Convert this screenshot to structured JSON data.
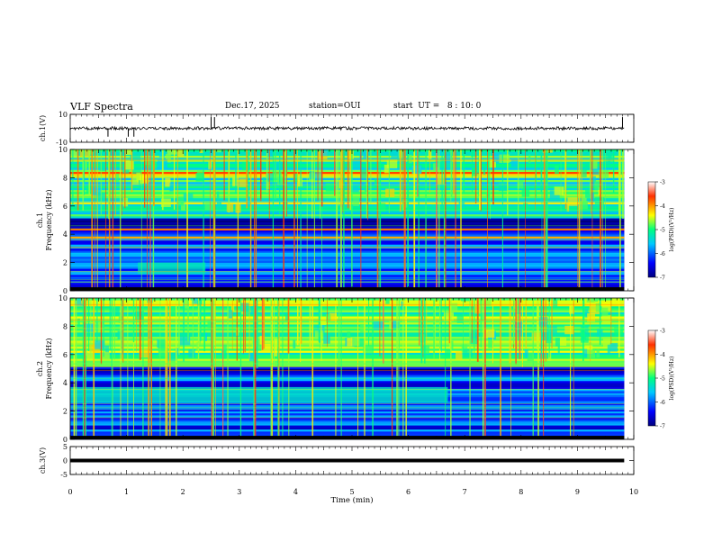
{
  "header": {
    "title": "VLF Spectra",
    "date": "Dec.17, 2025",
    "station": "station=OUI",
    "start": "start  UT =   8 : 10: 0"
  },
  "chart_data": [
    {
      "type": "line",
      "id": "ch1",
      "ylabel": "ch.1(V)",
      "ylim": [
        -10,
        10
      ],
      "y_ticks": [
        "10",
        "-10"
      ],
      "baseline": 0,
      "spikes_x_min": [
        0.67,
        1.03,
        1.13,
        2.5,
        2.56,
        9.8
      ]
    },
    {
      "type": "heatmap",
      "id": "ch1_spec",
      "ylabel": "ch.1 Frequency (kHz)",
      "ylim": [
        0,
        10
      ],
      "y_ticks": [
        "0",
        "2",
        "4",
        "6",
        "8",
        "10"
      ],
      "colorbar": {
        "label": "log(PSD)(V²/Hz)",
        "ticks": [
          "-3",
          "-4",
          "-5",
          "-6",
          "-7"
        ],
        "range": [
          -7,
          -3
        ]
      }
    },
    {
      "type": "heatmap",
      "id": "ch2_spec",
      "ylabel": "ch.2 Frequency (kHz)",
      "ylim": [
        0,
        10
      ],
      "y_ticks": [
        "0",
        "2",
        "4",
        "6",
        "8",
        "10"
      ],
      "colorbar": {
        "label": "log(PSD)(V²/Hz)",
        "ticks": [
          "-3",
          "-4",
          "-5",
          "-6",
          "-7"
        ],
        "range": [
          -7,
          -3
        ]
      }
    },
    {
      "type": "line",
      "id": "ch3",
      "ylabel": "ch.3(V)",
      "ylim": [
        -5,
        5
      ],
      "y_ticks": [
        "5",
        "0",
        "-5"
      ],
      "baseline": 0
    }
  ],
  "x_axis": {
    "label": "Time (min)",
    "xlim": [
      0,
      10
    ],
    "ticks": [
      "0",
      "1",
      "2",
      "3",
      "4",
      "5",
      "6",
      "7",
      "8",
      "9",
      "10"
    ],
    "data_end_min": 9.83
  }
}
